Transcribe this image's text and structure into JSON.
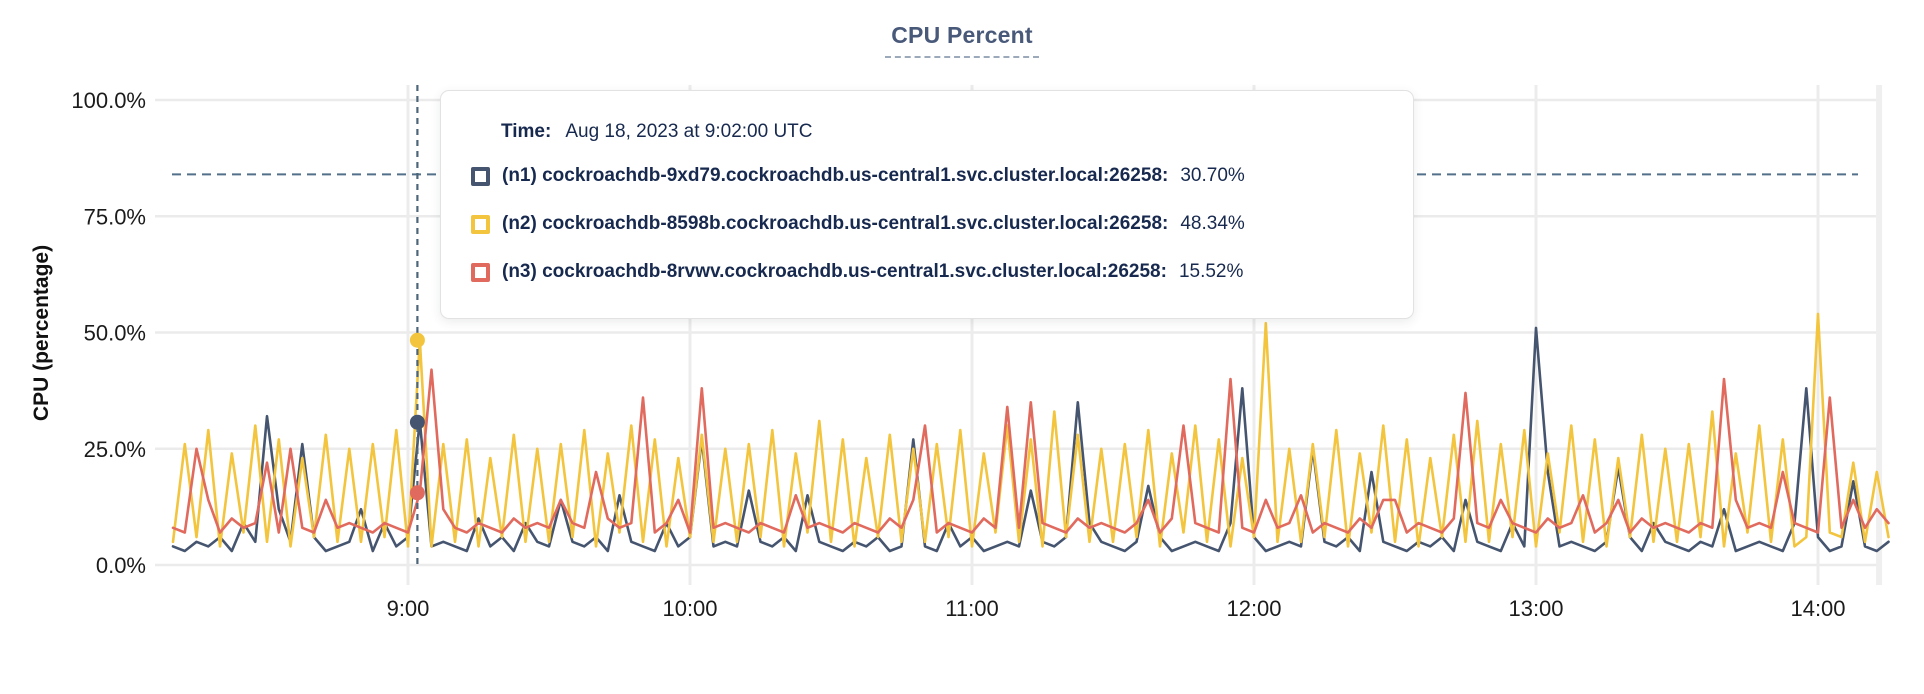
{
  "page": {
    "title": "CPU Percent"
  },
  "tooltip": {
    "time_label": "Time:",
    "time_value": "Aug 18, 2023 at 9:02:00 UTC",
    "rows": [
      {
        "label": "(n1) cockroachdb-9xd79.cockroachdb.us-central1.svc.cluster.local:26258:",
        "value": "30.70%",
        "color": "#46556F"
      },
      {
        "label": "(n2) cockroachdb-8598b.cockroachdb.us-central1.svc.cluster.local:26258:",
        "value": "48.34%",
        "color": "#F3C43D"
      },
      {
        "label": "(n3) cockroachdb-8rvwv.cockroachdb.us-central1.svc.cluster.local:26258:",
        "value": "15.52%",
        "color": "#E16A5E"
      }
    ]
  },
  "chart_data": {
    "type": "line",
    "title": "CPU Percent",
    "ylabel": "CPU (percentage)",
    "ylim": [
      0,
      100
    ],
    "grid": true,
    "yticks": [
      {
        "value": 0,
        "label": "0.0%"
      },
      {
        "value": 25,
        "label": "25.0%"
      },
      {
        "value": 50,
        "label": "50.0%"
      },
      {
        "value": 75,
        "label": "75.0%"
      },
      {
        "value": 100,
        "label": "100.0%"
      }
    ],
    "xticks": [
      {
        "minute": 60,
        "label": "9:00"
      },
      {
        "minute": 120,
        "label": "10:00"
      },
      {
        "minute": 180,
        "label": "11:00"
      },
      {
        "minute": 240,
        "label": "12:00"
      },
      {
        "minute": 300,
        "label": "13:00"
      },
      {
        "minute": 360,
        "label": "14:00"
      }
    ],
    "x_axis_note": "minutes after 8:00 UTC, Aug 18 2023; visible range about 8:10 to 14:15",
    "x_range_minutes": [
      10,
      375
    ],
    "right_edge_gridline_minute": 373,
    "threshold_line_percent": 84,
    "hover": {
      "minute": 62,
      "time_value": "Aug 18, 2023 at 9:02:00 UTC",
      "points": [
        {
          "series": "n1",
          "percent": 30.7,
          "display": "30.70%"
        },
        {
          "series": "n2",
          "percent": 48.34,
          "display": "48.34%"
        },
        {
          "series": "n3",
          "percent": 15.52,
          "display": "15.52%"
        }
      ]
    },
    "series": [
      {
        "id": "n1",
        "label": "(n1) cockroachdb-9xd79.cockroachdb.us-central1.svc.cluster.local:26258:",
        "color": "#46556F",
        "start_minute": 10,
        "step_minutes": 2.5,
        "values": [
          4,
          3,
          5,
          4,
          6,
          3,
          9,
          5,
          32,
          12,
          5,
          26,
          6,
          3,
          4,
          5,
          12,
          3,
          9,
          4,
          6,
          31,
          4,
          5,
          4,
          3,
          10,
          4,
          6,
          3,
          9,
          5,
          4,
          14,
          5,
          4,
          6,
          3,
          15,
          5,
          4,
          3,
          9,
          4,
          6,
          27,
          4,
          5,
          4,
          16,
          5,
          4,
          6,
          3,
          15,
          5,
          4,
          3,
          5,
          4,
          6,
          3,
          4,
          27,
          4,
          3,
          9,
          4,
          6,
          3,
          4,
          5,
          4,
          16,
          5,
          4,
          6,
          35,
          9,
          5,
          4,
          3,
          5,
          17,
          6,
          3,
          4,
          5,
          4,
          3,
          9,
          38,
          6,
          3,
          4,
          5,
          4,
          25,
          5,
          4,
          6,
          3,
          20,
          5,
          4,
          3,
          5,
          4,
          6,
          3,
          14,
          5,
          4,
          3,
          9,
          4,
          51,
          20,
          4,
          5,
          4,
          3,
          5,
          21,
          6,
          3,
          9,
          5,
          4,
          3,
          5,
          4,
          12,
          3,
          4,
          5,
          4,
          3,
          9,
          38,
          6,
          3,
          4,
          18,
          4,
          3,
          5
        ]
      },
      {
        "id": "n2",
        "label": "(n2) cockroachdb-8598b.cockroachdb.us-central1.svc.cluster.local:26258:",
        "color": "#F3C43D",
        "start_minute": 10,
        "step_minutes": 2.5,
        "values": [
          5,
          26,
          6,
          29,
          4,
          24,
          7,
          30,
          5,
          27,
          4,
          23,
          6,
          28,
          5,
          25,
          5,
          26,
          6,
          29,
          4,
          48.5,
          4,
          26,
          5,
          27,
          4,
          23,
          6,
          28,
          5,
          25,
          5,
          26,
          6,
          29,
          4,
          24,
          7,
          30,
          5,
          27,
          4,
          23,
          6,
          28,
          5,
          25,
          5,
          26,
          6,
          29,
          4,
          24,
          7,
          31,
          5,
          27,
          4,
          23,
          6,
          28,
          5,
          25,
          5,
          26,
          6,
          29,
          4,
          24,
          7,
          30,
          5,
          27,
          4,
          33,
          6,
          28,
          5,
          25,
          5,
          26,
          6,
          29,
          4,
          24,
          7,
          30,
          5,
          27,
          4,
          23,
          6,
          52,
          5,
          25,
          5,
          26,
          6,
          29,
          4,
          24,
          7,
          30,
          5,
          27,
          4,
          23,
          6,
          28,
          5,
          31,
          5,
          26,
          6,
          29,
          4,
          24,
          7,
          30,
          5,
          27,
          4,
          23,
          6,
          28,
          5,
          25,
          5,
          26,
          6,
          33,
          4,
          24,
          7,
          30,
          5,
          27,
          4,
          6,
          54,
          7,
          6,
          22,
          5,
          20,
          6
        ]
      },
      {
        "id": "n3",
        "label": "(n3) cockroachdb-8rvwv.cockroachdb.us-central1.svc.cluster.local:26258:",
        "color": "#E16A5E",
        "start_minute": 10,
        "step_minutes": 2.5,
        "values": [
          8,
          7,
          25,
          14,
          7,
          10,
          8,
          9,
          22,
          7,
          25,
          8,
          7,
          14,
          8,
          9,
          8,
          7,
          9,
          8,
          7,
          15.5,
          42,
          12,
          8,
          7,
          9,
          8,
          7,
          10,
          8,
          9,
          8,
          14,
          9,
          8,
          20,
          10,
          8,
          9,
          36,
          7,
          9,
          14,
          7,
          38,
          8,
          9,
          8,
          7,
          9,
          8,
          7,
          15,
          8,
          9,
          8,
          7,
          9,
          8,
          7,
          10,
          8,
          14,
          30,
          7,
          9,
          8,
          7,
          10,
          8,
          34,
          8,
          35,
          9,
          8,
          7,
          10,
          8,
          9,
          8,
          7,
          9,
          14,
          7,
          10,
          30,
          9,
          8,
          7,
          40,
          8,
          7,
          14,
          8,
          9,
          15,
          7,
          9,
          8,
          7,
          10,
          8,
          14,
          14,
          7,
          9,
          8,
          7,
          10,
          37,
          9,
          8,
          14,
          9,
          8,
          7,
          10,
          8,
          9,
          15,
          7,
          9,
          14,
          7,
          10,
          8,
          9,
          8,
          7,
          9,
          8,
          40,
          14,
          8,
          9,
          8,
          20,
          9,
          8,
          7,
          36,
          8,
          14,
          8,
          12,
          9
        ]
      }
    ]
  },
  "colors": {
    "grid": "#EBEBEB",
    "crosshair": "#4C6578",
    "threshold_dash": "#52708A",
    "tick_text": "#1B1B1B",
    "tooltip_text": "#17294E",
    "title": "#49597A",
    "title_underline": "#9BA9BB",
    "tooltip_border": "#E2E2E2"
  }
}
